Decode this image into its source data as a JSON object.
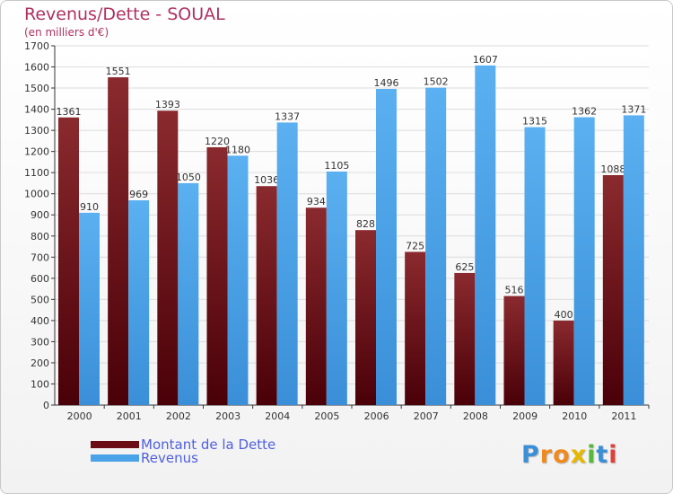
{
  "title": "Revenus/Dette - SOUAL",
  "subtitle": "(en milliers d'€)",
  "colors": {
    "title": "#b0305f",
    "dette": "#6b0d14",
    "revenus": "#4aa3e8",
    "legend_text": "#5060e0"
  },
  "chart_data": {
    "type": "bar",
    "categories": [
      "2000",
      "2001",
      "2002",
      "2003",
      "2004",
      "2005",
      "2006",
      "2007",
      "2008",
      "2009",
      "2010",
      "2011"
    ],
    "series": [
      {
        "name": "Montant de la Dette",
        "values": [
          1361,
          1551,
          1393,
          1220,
          1036,
          934,
          828,
          725,
          625,
          516,
          400,
          1088
        ]
      },
      {
        "name": "Revenus",
        "values": [
          910,
          969,
          1050,
          1180,
          1337,
          1105,
          1496,
          1502,
          1607,
          1315,
          1362,
          1371
        ]
      }
    ],
    "ylim": [
      0,
      1700
    ],
    "yticks": [
      0,
      100,
      200,
      300,
      400,
      500,
      600,
      700,
      800,
      900,
      1000,
      1100,
      1200,
      1300,
      1400,
      1500,
      1600,
      1700
    ],
    "grid": true,
    "legend": "bottom-left"
  },
  "legend": {
    "dette_label": "Montant de la Dette",
    "revenus_label": "Revenus"
  },
  "logo": {
    "letters": [
      "P",
      "r",
      "o",
      "x",
      "i",
      "t",
      "i"
    ]
  }
}
